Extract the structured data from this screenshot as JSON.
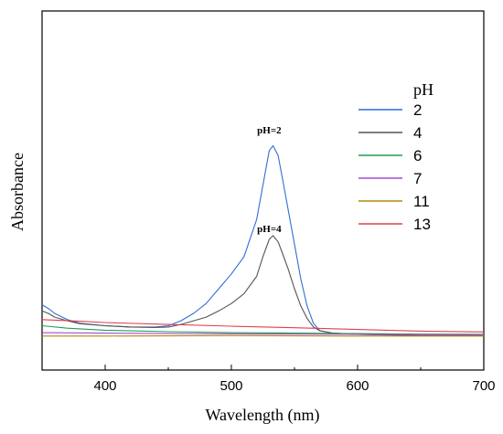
{
  "chart_data": {
    "type": "line",
    "xlabel": "Wavelength (nm)",
    "ylabel": "Absorbance",
    "xlim": [
      350,
      700
    ],
    "ylim": [
      0,
      1.0
    ],
    "x_ticks": [
      400,
      500,
      600,
      700
    ],
    "y_ticks_shown": false,
    "grid": false,
    "legend": {
      "title": "pH",
      "placement": "top-right"
    },
    "annotations": [
      {
        "text": "pH=2",
        "x": 530,
        "y": 0.83
      },
      {
        "text": "pH=4",
        "x": 530,
        "y": 0.43
      }
    ],
    "series": [
      {
        "name": "2",
        "color": "#2f6fd6",
        "points": [
          [
            350,
            0.135
          ],
          [
            355,
            0.12
          ],
          [
            360,
            0.1
          ],
          [
            370,
            0.075
          ],
          [
            380,
            0.06
          ],
          [
            400,
            0.05
          ],
          [
            420,
            0.045
          ],
          [
            440,
            0.045
          ],
          [
            450,
            0.05
          ],
          [
            460,
            0.07
          ],
          [
            470,
            0.1
          ],
          [
            480,
            0.14
          ],
          [
            490,
            0.2
          ],
          [
            500,
            0.26
          ],
          [
            510,
            0.33
          ],
          [
            520,
            0.48
          ],
          [
            525,
            0.62
          ],
          [
            530,
            0.76
          ],
          [
            533,
            0.78
          ],
          [
            537,
            0.74
          ],
          [
            540,
            0.66
          ],
          [
            545,
            0.52
          ],
          [
            550,
            0.38
          ],
          [
            555,
            0.24
          ],
          [
            560,
            0.13
          ],
          [
            565,
            0.06
          ],
          [
            570,
            0.03
          ],
          [
            580,
            0.02
          ],
          [
            600,
            0.015
          ],
          [
            650,
            0.01
          ],
          [
            700,
            0.01
          ]
        ]
      },
      {
        "name": "4",
        "color": "#555555",
        "points": [
          [
            350,
            0.11
          ],
          [
            355,
            0.1
          ],
          [
            360,
            0.085
          ],
          [
            370,
            0.07
          ],
          [
            380,
            0.058
          ],
          [
            400,
            0.05
          ],
          [
            420,
            0.045
          ],
          [
            440,
            0.043
          ],
          [
            450,
            0.045
          ],
          [
            460,
            0.055
          ],
          [
            470,
            0.07
          ],
          [
            480,
            0.085
          ],
          [
            490,
            0.11
          ],
          [
            500,
            0.14
          ],
          [
            510,
            0.18
          ],
          [
            520,
            0.25
          ],
          [
            525,
            0.33
          ],
          [
            530,
            0.4
          ],
          [
            533,
            0.415
          ],
          [
            537,
            0.39
          ],
          [
            540,
            0.35
          ],
          [
            545,
            0.28
          ],
          [
            550,
            0.2
          ],
          [
            555,
            0.13
          ],
          [
            560,
            0.08
          ],
          [
            565,
            0.045
          ],
          [
            570,
            0.03
          ],
          [
            580,
            0.02
          ],
          [
            600,
            0.015
          ],
          [
            650,
            0.01
          ],
          [
            700,
            0.01
          ]
        ]
      },
      {
        "name": "6",
        "color": "#1f9e57",
        "points": [
          [
            350,
            0.05
          ],
          [
            370,
            0.04
          ],
          [
            400,
            0.032
          ],
          [
            450,
            0.026
          ],
          [
            500,
            0.022
          ],
          [
            550,
            0.02
          ],
          [
            600,
            0.018
          ],
          [
            650,
            0.016
          ],
          [
            700,
            0.015
          ]
        ]
      },
      {
        "name": "7",
        "color": "#a64ad6",
        "points": [
          [
            350,
            0.022
          ],
          [
            400,
            0.02
          ],
          [
            450,
            0.018
          ],
          [
            500,
            0.017
          ],
          [
            550,
            0.016
          ],
          [
            600,
            0.015
          ],
          [
            650,
            0.014
          ],
          [
            700,
            0.013
          ]
        ]
      },
      {
        "name": "11",
        "color": "#b8860b",
        "points": [
          [
            350,
            0.008
          ],
          [
            400,
            0.008
          ],
          [
            450,
            0.009
          ],
          [
            500,
            0.01
          ],
          [
            550,
            0.009
          ],
          [
            600,
            0.008
          ],
          [
            650,
            0.008
          ],
          [
            700,
            0.008
          ]
        ]
      },
      {
        "name": "13",
        "color": "#e0404f",
        "points": [
          [
            350,
            0.075
          ],
          [
            380,
            0.068
          ],
          [
            400,
            0.063
          ],
          [
            450,
            0.055
          ],
          [
            500,
            0.048
          ],
          [
            550,
            0.042
          ],
          [
            600,
            0.035
          ],
          [
            650,
            0.028
          ],
          [
            700,
            0.025
          ]
        ]
      }
    ]
  }
}
